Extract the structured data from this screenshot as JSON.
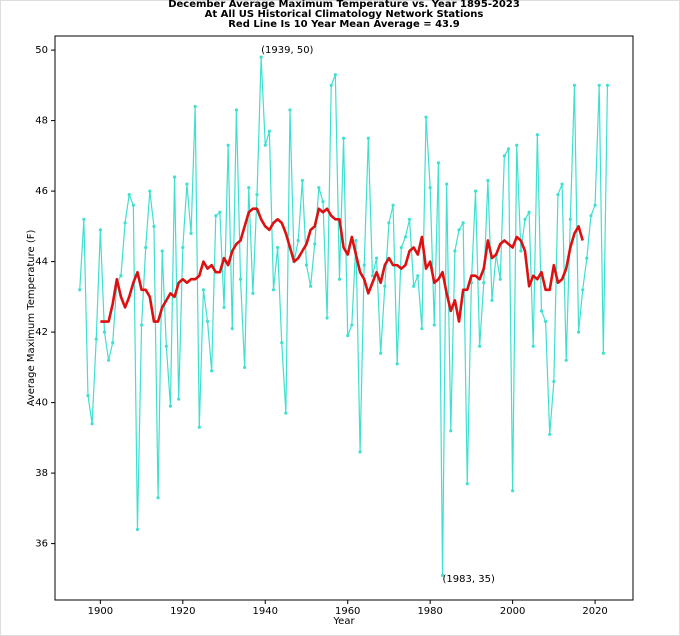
{
  "chart_data": {
    "type": "line",
    "title": [
      "December Average Maximum Temperature vs. Year 1895-2023",
      "At All US Historical Climatology Network Stations",
      "Red Line Is 10 Year Mean  Average = 43.9"
    ],
    "x_label": "Year",
    "y_label": "Average Maximum Temperature (F)",
    "x": [
      1895,
      1896,
      1897,
      1898,
      1899,
      1900,
      1901,
      1902,
      1903,
      1904,
      1905,
      1906,
      1907,
      1908,
      1909,
      1910,
      1911,
      1912,
      1913,
      1914,
      1915,
      1916,
      1917,
      1918,
      1919,
      1920,
      1921,
      1922,
      1923,
      1924,
      1925,
      1926,
      1927,
      1928,
      1929,
      1930,
      1931,
      1932,
      1933,
      1934,
      1935,
      1936,
      1937,
      1938,
      1939,
      1940,
      1941,
      1942,
      1943,
      1944,
      1945,
      1946,
      1947,
      1948,
      1949,
      1950,
      1951,
      1952,
      1953,
      1954,
      1955,
      1956,
      1957,
      1958,
      1959,
      1960,
      1961,
      1962,
      1963,
      1964,
      1965,
      1966,
      1967,
      1968,
      1969,
      1970,
      1971,
      1972,
      1973,
      1974,
      1975,
      1976,
      1977,
      1978,
      1979,
      1980,
      1981,
      1982,
      1983,
      1984,
      1985,
      1986,
      1987,
      1988,
      1989,
      1990,
      1991,
      1992,
      1993,
      1994,
      1995,
      1996,
      1997,
      1998,
      1999,
      2000,
      2001,
      2002,
      2003,
      2004,
      2005,
      2006,
      2007,
      2008,
      2009,
      2010,
      2011,
      2012,
      2013,
      2014,
      2015,
      2016,
      2017,
      2018,
      2019,
      2020,
      2021,
      2022,
      2023
    ],
    "series": [
      {
        "color": "#40e0d0",
        "markers": true,
        "values": [
          43.2,
          45.2,
          40.2,
          39.4,
          41.8,
          44.9,
          42.0,
          41.2,
          41.7,
          43.4,
          43.6,
          45.1,
          45.9,
          45.6,
          36.4,
          42.2,
          44.4,
          46.0,
          45.0,
          37.3,
          44.3,
          41.6,
          39.9,
          46.4,
          40.1,
          44.4,
          46.2,
          44.8,
          48.4,
          39.3,
          43.2,
          42.3,
          40.9,
          45.3,
          45.4,
          42.7,
          47.3,
          42.1,
          48.3,
          43.5,
          41.0,
          46.1,
          43.1,
          45.9,
          49.8,
          47.3,
          47.7,
          43.2,
          44.4,
          41.7,
          39.7,
          48.3,
          44.0,
          44.6,
          46.3,
          43.9,
          43.3,
          44.5,
          46.1,
          45.7,
          42.4,
          49.0,
          49.3,
          43.5,
          47.5,
          41.9,
          42.2,
          44.6,
          38.6,
          43.9,
          47.5,
          43.6,
          44.1,
          41.4,
          43.3,
          45.1,
          45.6,
          41.1,
          44.4,
          44.7,
          45.2,
          43.3,
          43.6,
          42.1,
          48.1,
          46.1,
          42.2,
          46.8,
          35.1,
          46.2,
          39.2,
          44.3,
          44.9,
          45.1,
          37.7,
          43.4,
          46.0,
          41.6,
          43.4,
          46.3,
          42.9,
          44.2,
          43.5,
          47.0,
          47.2,
          37.5,
          47.3,
          44.3,
          45.2,
          45.4,
          41.6,
          47.6,
          42.6,
          42.3,
          39.1,
          40.6,
          45.9,
          46.2,
          41.2,
          45.2,
          49.0,
          42.0,
          43.2,
          44.1,
          45.3,
          45.6,
          49.0,
          41.4,
          49.0
        ]
      },
      {
        "color": "#dd1111",
        "markers": false,
        "values": [
          null,
          null,
          null,
          null,
          null,
          42.3,
          42.3,
          42.3,
          42.8,
          43.5,
          43.0,
          42.7,
          43.0,
          43.4,
          43.7,
          43.2,
          43.2,
          43.0,
          42.3,
          42.3,
          42.7,
          42.9,
          43.1,
          43.0,
          43.4,
          43.5,
          43.4,
          43.5,
          43.5,
          43.6,
          44.0,
          43.8,
          43.9,
          43.7,
          43.7,
          44.1,
          43.9,
          44.3,
          44.5,
          44.6,
          45.0,
          45.4,
          45.5,
          45.5,
          45.2,
          45.0,
          44.9,
          45.1,
          45.2,
          45.1,
          44.8,
          44.4,
          44.0,
          44.1,
          44.3,
          44.5,
          44.9,
          45.0,
          45.5,
          45.4,
          45.5,
          45.3,
          45.2,
          45.2,
          44.4,
          44.2,
          44.7,
          44.2,
          43.7,
          43.5,
          43.1,
          43.4,
          43.7,
          43.4,
          43.9,
          44.1,
          43.9,
          43.9,
          43.8,
          43.9,
          44.3,
          44.4,
          44.2,
          44.7,
          43.8,
          44.0,
          43.4,
          43.5,
          43.7,
          43.1,
          42.6,
          42.9,
          42.3,
          43.2,
          43.2,
          43.6,
          43.6,
          43.5,
          43.8,
          44.6,
          44.1,
          44.2,
          44.5,
          44.6,
          44.5,
          44.4,
          44.7,
          44.6,
          44.3,
          43.3,
          43.6,
          43.5,
          43.7,
          43.2,
          43.2,
          43.9,
          43.4,
          43.5,
          43.8,
          44.4,
          44.8,
          45.0,
          44.6,
          null,
          null,
          null,
          null,
          null,
          null
        ]
      }
    ],
    "annotations": [
      {
        "text": "(1939, 50)",
        "x": 1939,
        "y": 50
      },
      {
        "text": "(1983, 35)",
        "x": 1983,
        "y": 35
      }
    ],
    "xlim": [
      1889,
      2029.2
    ],
    "ylim": [
      34.4,
      50.4
    ],
    "xticks": [
      1900,
      1920,
      1940,
      1960,
      1980,
      2000,
      2020
    ],
    "yticks": [
      36,
      38,
      40,
      42,
      44,
      46,
      48,
      50
    ],
    "grid": false
  }
}
